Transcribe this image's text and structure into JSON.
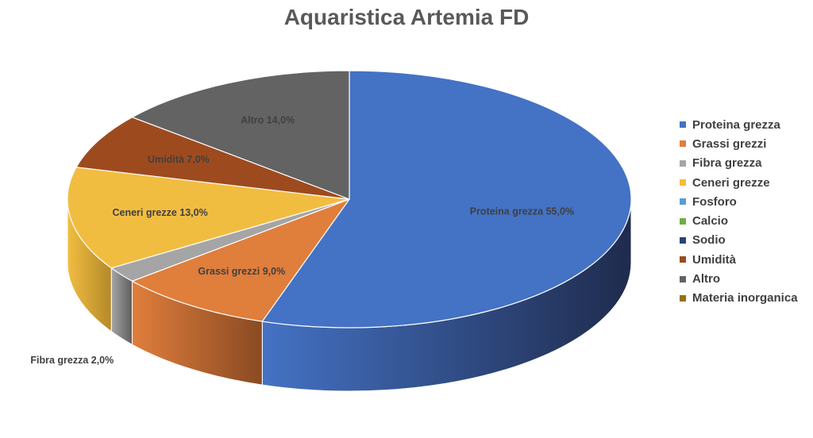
{
  "chart_data": {
    "type": "pie",
    "title": "Aquaristica Artemia FD",
    "slices": [
      {
        "name": "Proteina grezza",
        "value": 55.0,
        "label": "Proteina grezza 55,0%",
        "color": "#4472C4",
        "dark": "#1F2B4D"
      },
      {
        "name": "Grassi grezzi",
        "value": 9.0,
        "label": "Grassi grezzi 9,0%",
        "color": "#E07E3C",
        "dark": "#8A4A22"
      },
      {
        "name": "Fibra grezza",
        "value": 2.0,
        "label": "Fibra grezza 2,0%",
        "color": "#A5A5A5",
        "dark": "#5E5E5E"
      },
      {
        "name": "Ceneri grezze",
        "value": 13.0,
        "label": "Ceneri grezze 13,0%",
        "color": "#F1BD41",
        "dark": "#B5892A"
      },
      {
        "name": "Fosforo",
        "value": 0,
        "label": "",
        "color": "#5B9BD5",
        "dark": "#3A6890"
      },
      {
        "name": "Calcio",
        "value": 0,
        "label": "",
        "color": "#70AD47",
        "dark": "#4A742F"
      },
      {
        "name": "Sodio",
        "value": 0,
        "label": "",
        "color": "#264478",
        "dark": "#162846"
      },
      {
        "name": "Umidità",
        "value": 7.0,
        "label": "Umidità 7,0%",
        "color": "#9E4A1F",
        "dark": "#6A3014"
      },
      {
        "name": "Altro",
        "value": 14.0,
        "label": "Altro 14,0%",
        "color": "#636363",
        "dark": "#3A3A3A"
      },
      {
        "name": "Materia inorganica",
        "value": 0,
        "label": "",
        "color": "#997300",
        "dark": "#5E4600"
      }
    ],
    "legend_placement": "right"
  }
}
